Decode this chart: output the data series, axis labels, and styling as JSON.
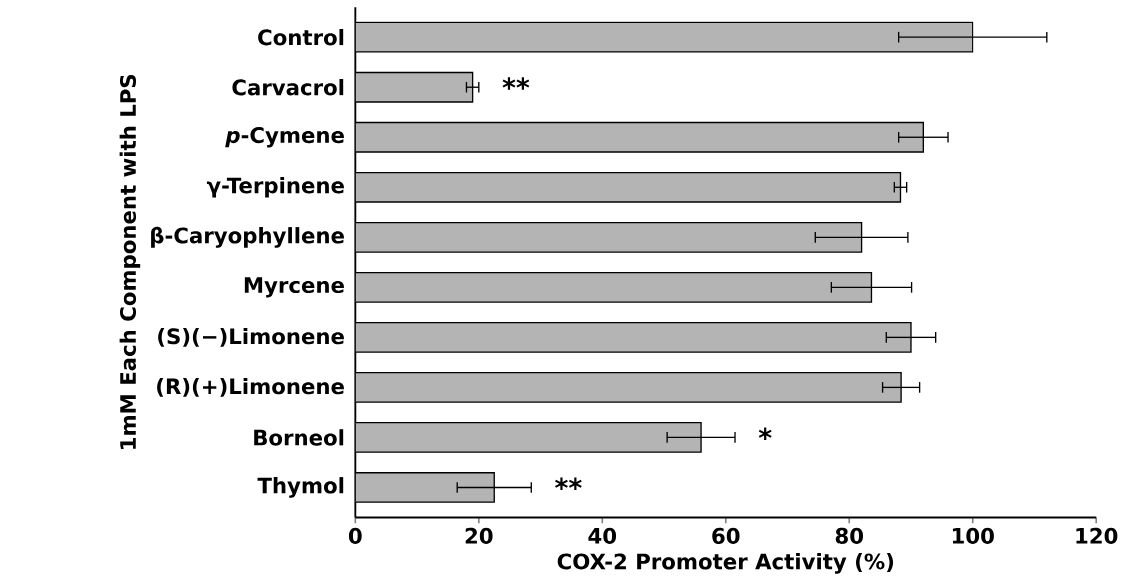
{
  "chart_data": {
    "type": "bar",
    "orientation": "horizontal",
    "xlabel": "COX-2 Promoter Activity (%)",
    "ylabel": "1mM Each Component with LPS",
    "categories": [
      "Control",
      "Carvacrol",
      "*p*-Cymene",
      "γ-Terpinene",
      "β-Caryophyllene",
      "Myrcene",
      "(S)(−)Limonene",
      "(R)(+)Limonene",
      "Borneol",
      "Thymol"
    ],
    "values": [
      100,
      19,
      92,
      88.3,
      82,
      83.6,
      90,
      88.4,
      56,
      22.5
    ],
    "errors": [
      12,
      1,
      4,
      1,
      7.5,
      6.5,
      4,
      3,
      5.5,
      6
    ],
    "color": "#b4b4b4",
    "value_labels": [
      null,
      "**",
      null,
      null,
      null,
      null,
      null,
      null,
      "*",
      "**"
    ],
    "xlim": [
      0,
      120
    ],
    "xticks": [
      0,
      20,
      40,
      60,
      80,
      100,
      120
    ],
    "grid": false
  }
}
